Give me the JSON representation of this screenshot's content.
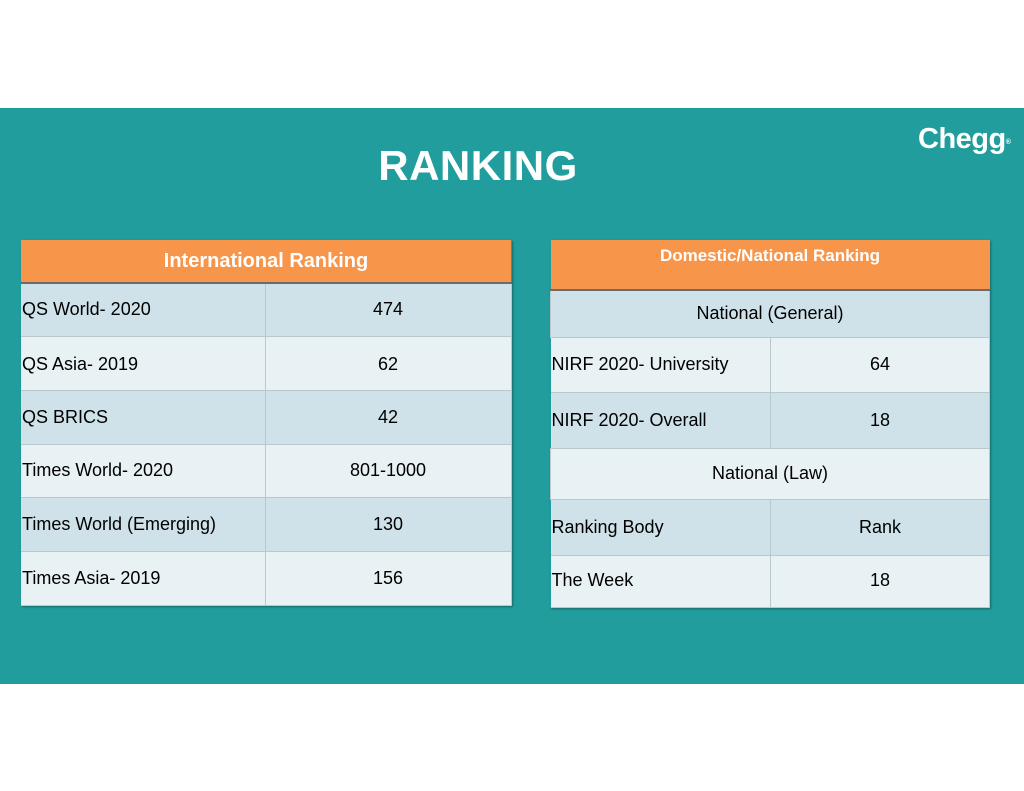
{
  "title": "RANKING",
  "logo": {
    "text": "Chegg",
    "mark": "®"
  },
  "international": {
    "header": "International Ranking",
    "rows": [
      {
        "label": "QS World- 2020",
        "value": "474"
      },
      {
        "label": "QS Asia- 2019",
        "value": "62"
      },
      {
        "label": "QS BRICS",
        "value": "42"
      },
      {
        "label": "Times World- 2020",
        "value": "801-1000"
      },
      {
        "label": "Times World (Emerging)",
        "value": "130"
      },
      {
        "label": "Times Asia- 2019",
        "value": "156"
      }
    ]
  },
  "domestic": {
    "header": "Domestic/National Ranking",
    "section_general": "National (General)",
    "general_rows": [
      {
        "label": "NIRF 2020- University",
        "value": "64"
      },
      {
        "label": "NIRF 2020- Overall",
        "value": "18"
      }
    ],
    "section_law": "National (Law)",
    "law_header": {
      "label": "Ranking Body",
      "value": "Rank"
    },
    "law_rows": [
      {
        "label": "The Week",
        "value": "18"
      }
    ]
  },
  "colors": {
    "background": "#229d9d",
    "header": "#f7954a",
    "row_dark": "#cfe2e9",
    "row_light": "#e8f1f4"
  }
}
